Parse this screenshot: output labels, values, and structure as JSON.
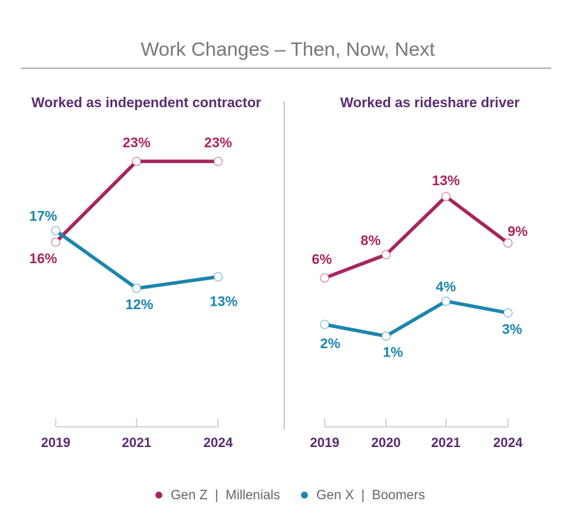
{
  "title": "Work Changes – Then, Now, Next",
  "legend": {
    "items": [
      {
        "label": "Gen Z  |  Millenials",
        "color": "#a7255f"
      },
      {
        "label": "Gen X  |  Boomers",
        "color": "#1a85ad"
      }
    ]
  },
  "colors": {
    "series_a": "#a7255f",
    "series_b": "#1a85ad",
    "axis": "#c8c8c8",
    "subtitle": "#5b2c6f"
  },
  "chart_data": [
    {
      "type": "line",
      "title": "Worked as independent contractor",
      "categories": [
        "2019",
        "2021",
        "2024"
      ],
      "series": [
        {
          "name": "Gen Z  |  Millenials",
          "values": [
            16,
            23,
            23
          ],
          "labels": [
            "16%",
            "23%",
            "23%"
          ]
        },
        {
          "name": "Gen X  |  Boomers",
          "values": [
            17,
            12,
            13
          ],
          "labels": [
            "17%",
            "12%",
            "13%"
          ]
        }
      ]
    },
    {
      "type": "line",
      "title": "Worked as rideshare driver",
      "categories": [
        "2019",
        "2020",
        "2021",
        "2024"
      ],
      "series": [
        {
          "name": "Gen Z  |  Millenials",
          "values": [
            6,
            8,
            13,
            9
          ],
          "labels": [
            "6%",
            "8%",
            "13%",
            "9%"
          ]
        },
        {
          "name": "Gen X  |  Boomers",
          "values": [
            2,
            1,
            4,
            3
          ],
          "labels": [
            "2%",
            "1%",
            "4%",
            "3%"
          ]
        }
      ]
    }
  ]
}
